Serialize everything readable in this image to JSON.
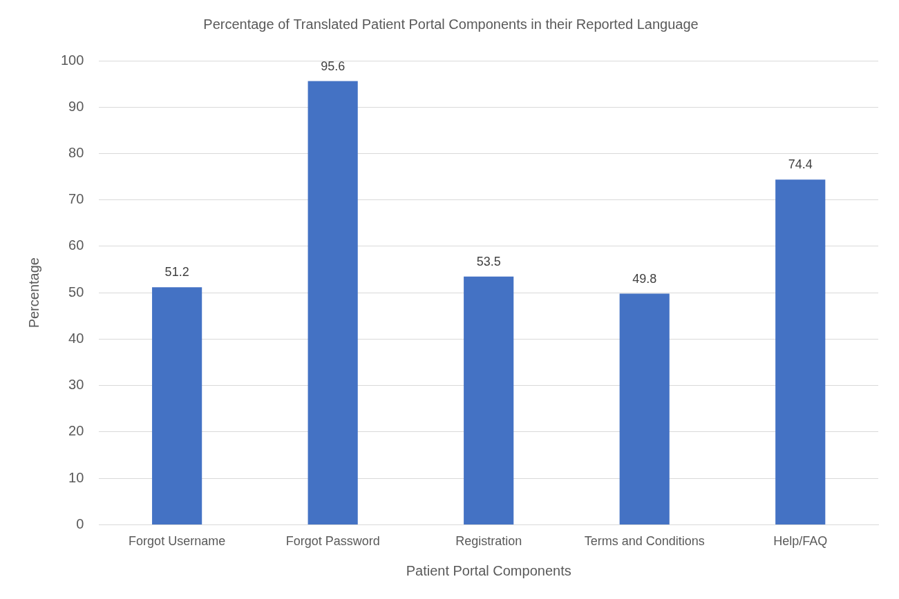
{
  "chart_data": {
    "type": "bar",
    "title": "Percentage of Translated Patient Portal Components in their Reported Language",
    "x_label": "Patient Portal Components",
    "y_label": "Percentage",
    "categories": [
      "Forgot Username",
      "Forgot Password",
      "Registration",
      "Terms and Conditions",
      "Help/FAQ"
    ],
    "values": [
      51.2,
      95.6,
      53.5,
      49.8,
      74.4
    ],
    "color": "#4472c4",
    "ylim": [
      0,
      100
    ],
    "yticks": [
      0,
      10,
      20,
      30,
      40,
      50,
      60,
      70,
      80,
      90,
      100
    ],
    "grid": true,
    "data_labels": true
  }
}
